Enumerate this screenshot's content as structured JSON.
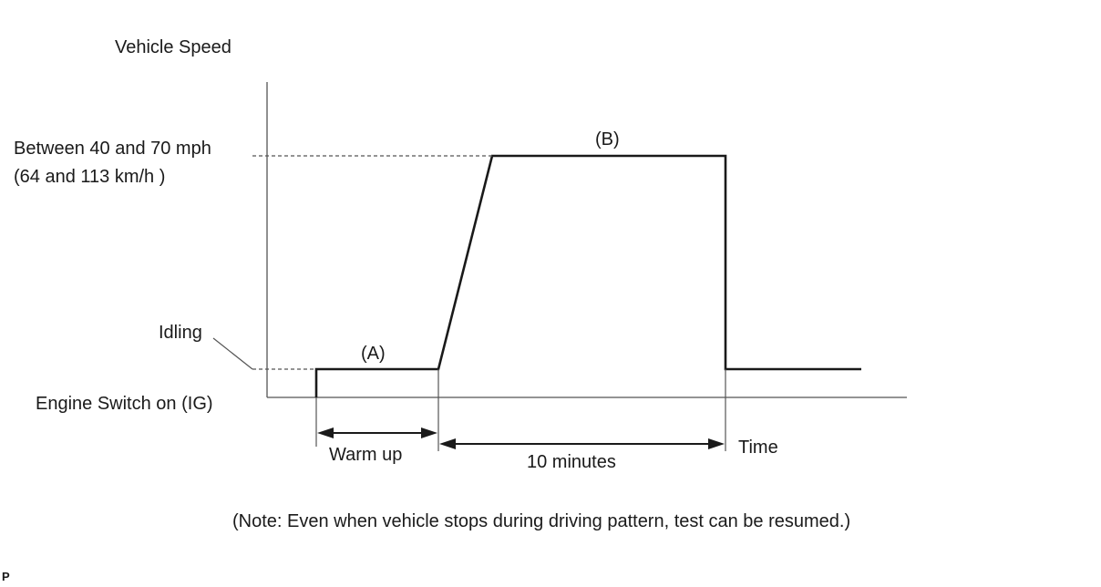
{
  "y_axis_label": "Vehicle Speed",
  "speed_level": {
    "line1": "Between 40 and 70 mph",
    "line2": "(64 and 113 km/h )"
  },
  "idling_label": "Idling",
  "engine_switch_label": "Engine Switch on (IG)",
  "phase_a_label": "(A)",
  "phase_b_label": "(B)",
  "warm_up_label": "Warm up",
  "ten_minutes_label": "10 minutes",
  "x_axis_label": "Time",
  "note": "(Note: Even when vehicle stops during driving pattern, test can be resumed.)",
  "corner_mark": "P"
}
